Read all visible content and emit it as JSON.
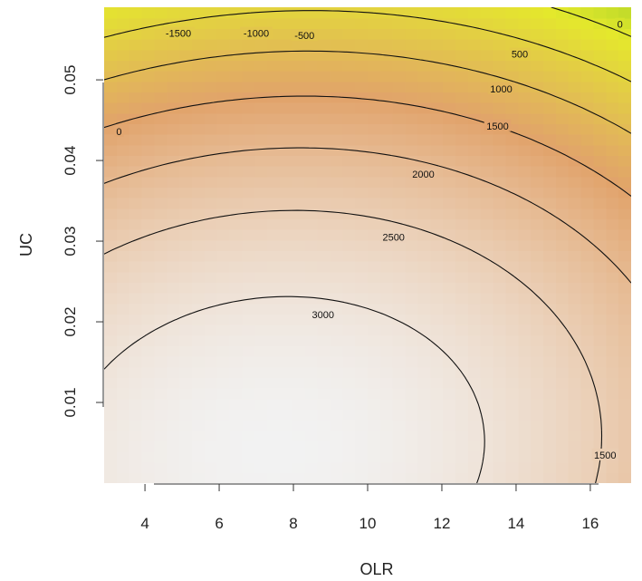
{
  "chart_data": {
    "type": "heatmap",
    "subtype": "filled contour plot with contour lines",
    "xlabel": "OLR",
    "ylabel": "UC",
    "xlim": [
      2.9,
      17.1
    ],
    "ylim": [
      0.0,
      0.059
    ],
    "xticks": [
      4,
      6,
      8,
      10,
      12,
      14,
      16
    ],
    "yticks": [
      0.01,
      0.02,
      0.03,
      0.04,
      0.05
    ],
    "xtick_labels": [
      "4",
      "6",
      "8",
      "10",
      "12",
      "14",
      "16"
    ],
    "ytick_labels": [
      "0.01",
      "0.02",
      "0.03",
      "0.04",
      "0.05"
    ],
    "grid": false,
    "legend": "none",
    "colormap": {
      "low": "#1fa01f",
      "mid_low": "#e4e82c",
      "mid": "#e1a36b",
      "high": "#f2f2f2"
    },
    "contour_levels": [
      -1500,
      -1000,
      -500,
      0,
      500,
      1000,
      1500,
      2000,
      2500,
      3000
    ],
    "contour_labels": [
      {
        "text": "-1500",
        "x": 4.9,
        "y": 0.0558
      },
      {
        "text": "-1000",
        "x": 7.0,
        "y": 0.0558
      },
      {
        "text": "-500",
        "x": 8.3,
        "y": 0.0555
      },
      {
        "text": "0",
        "x": 3.3,
        "y": 0.0436
      },
      {
        "text": "0",
        "x": 16.8,
        "y": 0.0569
      },
      {
        "text": "500",
        "x": 14.1,
        "y": 0.0532
      },
      {
        "text": "1000",
        "x": 13.6,
        "y": 0.0489
      },
      {
        "text": "1500",
        "x": 13.5,
        "y": 0.0443
      },
      {
        "text": "2000",
        "x": 11.5,
        "y": 0.0383
      },
      {
        "text": "2500",
        "x": 10.7,
        "y": 0.0305
      },
      {
        "text": "3000",
        "x": 8.8,
        "y": 0.0209
      },
      {
        "text": "1500",
        "x": 16.4,
        "y": 0.0035
      }
    ]
  }
}
